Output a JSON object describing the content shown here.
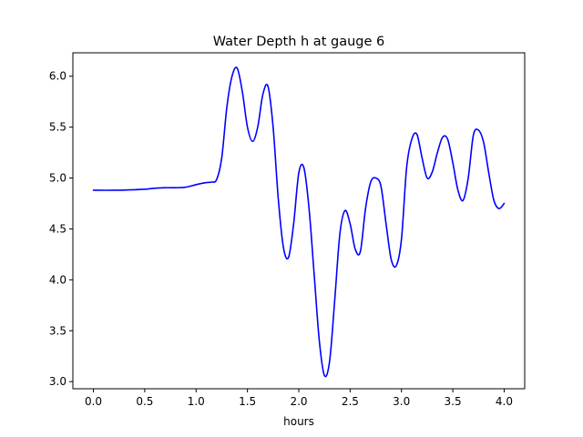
{
  "chart_data": {
    "type": "line",
    "title": "Water Depth h at gauge 6",
    "xlabel": "hours",
    "ylabel": "",
    "xlim": [
      -0.2,
      4.2
    ],
    "ylim": [
      2.93,
      6.23
    ],
    "xticks": [
      0.0,
      0.5,
      1.0,
      1.5,
      2.0,
      2.5,
      3.0,
      3.5,
      4.0
    ],
    "xtick_labels": [
      "0.0",
      "0.5",
      "1.0",
      "1.5",
      "2.0",
      "2.5",
      "3.0",
      "3.5",
      "4.0"
    ],
    "yticks": [
      3.0,
      3.5,
      4.0,
      4.5,
      5.0,
      5.5,
      6.0
    ],
    "ytick_labels": [
      "3.0",
      "3.5",
      "4.0",
      "4.5",
      "5.0",
      "5.5",
      "6.0"
    ],
    "grid": false,
    "legend": "none",
    "series": [
      {
        "color": "#0000ff",
        "x": [
          0.0,
          0.2,
          0.4,
          0.5,
          0.6,
          0.7,
          0.8,
          0.9,
          1.0,
          1.1,
          1.15,
          1.2,
          1.25,
          1.3,
          1.35,
          1.4,
          1.45,
          1.5,
          1.55,
          1.6,
          1.65,
          1.7,
          1.75,
          1.8,
          1.85,
          1.9,
          1.95,
          2.0,
          2.05,
          2.1,
          2.15,
          2.2,
          2.25,
          2.3,
          2.35,
          2.4,
          2.45,
          2.5,
          2.55,
          2.6,
          2.65,
          2.7,
          2.75,
          2.8,
          2.85,
          2.9,
          2.95,
          3.0,
          3.05,
          3.1,
          3.15,
          3.2,
          3.25,
          3.3,
          3.35,
          3.4,
          3.45,
          3.5,
          3.55,
          3.6,
          3.65,
          3.7,
          3.75,
          3.8,
          3.85,
          3.9,
          3.95,
          4.0
        ],
        "y": [
          4.88,
          4.88,
          4.885,
          4.89,
          4.9,
          4.905,
          4.905,
          4.91,
          4.935,
          4.955,
          4.96,
          4.985,
          5.2,
          5.7,
          6.0,
          6.08,
          5.85,
          5.5,
          5.36,
          5.5,
          5.82,
          5.9,
          5.5,
          4.8,
          4.32,
          4.22,
          4.55,
          5.05,
          5.1,
          4.7,
          4.05,
          3.4,
          3.06,
          3.2,
          3.8,
          4.45,
          4.68,
          4.55,
          4.3,
          4.28,
          4.7,
          4.96,
          5.0,
          4.92,
          4.55,
          4.2,
          4.14,
          4.4,
          5.1,
          5.38,
          5.43,
          5.2,
          5.0,
          5.06,
          5.25,
          5.4,
          5.38,
          5.15,
          4.88,
          4.78,
          5.0,
          5.42,
          5.47,
          5.35,
          5.05,
          4.78,
          4.7,
          4.75
        ]
      }
    ]
  }
}
